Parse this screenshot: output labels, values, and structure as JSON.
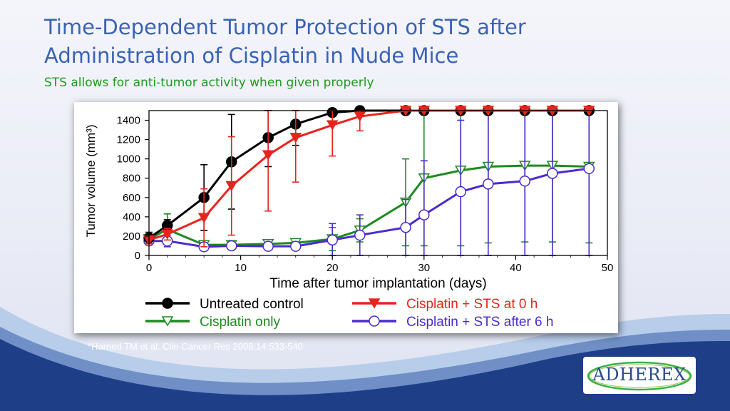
{
  "slide": {
    "title_line1": "Time-Dependent Tumor Protection of STS after",
    "title_line2": "Administration of Cisplatin in Nude Mice",
    "subtitle": "STS allows for anti-tumor activity when given properly",
    "citation": "*Harned TM et al. Clin Cancer Res 2008;14:533-540",
    "logo_text": "ADHEREX"
  },
  "colors": {
    "title": "#3a62b6",
    "subtitle": "#1f9a1f",
    "wave_dark": "#1e3f88",
    "wave_light": "#a9c3e6"
  },
  "chart_data": {
    "type": "line",
    "title": "",
    "xlabel": "Time after tumor implantation (days)",
    "ylabel": "Tumor volume (mm³)",
    "xlim": [
      0,
      50
    ],
    "ylim": [
      0,
      1500
    ],
    "xticks": [
      0,
      10,
      20,
      30,
      40,
      50
    ],
    "yticks": [
      0,
      200,
      400,
      600,
      800,
      1000,
      1200,
      1400
    ],
    "legend_placement": "bottom",
    "series": [
      {
        "name": "Untreated control",
        "color": "#000000",
        "marker": "filled-circle",
        "x": [
          0,
          2,
          6,
          9,
          13,
          16,
          20,
          23,
          28,
          30,
          34,
          37,
          41,
          44,
          48
        ],
        "y": [
          180,
          310,
          600,
          970,
          1220,
          1360,
          1480,
          1500,
          1500,
          1500,
          1500,
          1500,
          1500,
          1500,
          1500
        ],
        "err": [
          60,
          60,
          340,
          490,
          300,
          220,
          30,
          0,
          0,
          0,
          0,
          0,
          0,
          0,
          0
        ]
      },
      {
        "name": "Cisplatin + STS at 0 h",
        "color": "#e8231e",
        "marker": "filled-triangle-down",
        "x": [
          0,
          2,
          6,
          9,
          13,
          16,
          20,
          23,
          28,
          30,
          34,
          37,
          41,
          44,
          48
        ],
        "y": [
          160,
          220,
          390,
          720,
          1040,
          1220,
          1350,
          1440,
          1500,
          1500,
          1500,
          1500,
          1500,
          1500,
          1500
        ],
        "err": [
          40,
          60,
          300,
          510,
          580,
          460,
          320,
          150,
          0,
          0,
          0,
          0,
          0,
          0,
          0
        ]
      },
      {
        "name": "Cisplatin only",
        "color": "#1f8a1f",
        "marker": "open-triangle-down",
        "x": [
          0,
          2,
          6,
          9,
          13,
          16,
          20,
          23,
          28,
          30,
          34,
          37,
          41,
          44,
          48
        ],
        "y": [
          170,
          270,
          110,
          110,
          120,
          130,
          170,
          260,
          550,
          800,
          880,
          920,
          930,
          930,
          920
        ],
        "err": [
          40,
          160,
          40,
          40,
          40,
          40,
          120,
          120,
          450,
          700,
          780,
          790,
          790,
          790,
          790
        ]
      },
      {
        "name": "Cisplatin + STS after 6 h",
        "color": "#4a2bd0",
        "marker": "open-circle",
        "x": [
          0,
          2,
          6,
          9,
          13,
          16,
          20,
          23,
          28,
          30,
          34,
          37,
          41,
          44,
          48
        ],
        "y": [
          150,
          150,
          90,
          100,
          95,
          95,
          160,
          210,
          290,
          420,
          660,
          740,
          770,
          850,
          900
        ],
        "err": [
          40,
          60,
          40,
          30,
          30,
          30,
          170,
          210,
          290,
          560,
          740,
          740,
          770,
          850,
          900
        ]
      }
    ]
  }
}
